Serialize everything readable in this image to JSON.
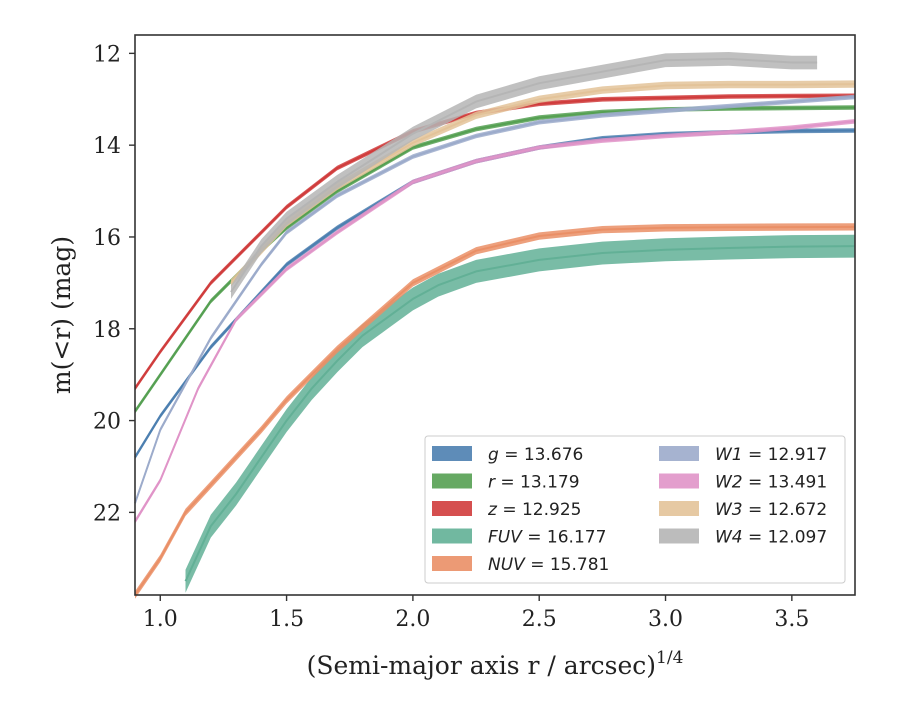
{
  "chart_data": {
    "type": "line",
    "title": "",
    "xlabel": "(Semi-major axis r / arcsec)",
    "xlabel_superscript": "1/4",
    "ylabel": "m(<r) (mag)",
    "xlim": [
      0.9,
      3.75
    ],
    "ylim": [
      23.8,
      11.6
    ],
    "y_inverted": true,
    "grid": false,
    "legend_placement": "lower-right",
    "xticks": [
      "1.0",
      "1.5",
      "2.0",
      "2.5",
      "3.0",
      "3.5"
    ],
    "yticks": [
      "12",
      "14",
      "16",
      "18",
      "20",
      "22"
    ],
    "series": [
      {
        "name": "g = 13.676",
        "label_var": "g",
        "label_value": "13.676",
        "color": "#4c7fb0",
        "band": 0.05,
        "x": [
          0.9,
          1.0,
          1.2,
          1.4,
          1.5,
          1.7,
          2.0,
          2.25,
          2.5,
          2.75,
          3.0,
          3.25,
          3.5,
          3.75
        ],
        "y": [
          20.8,
          19.9,
          18.4,
          17.2,
          16.6,
          15.8,
          14.8,
          14.35,
          14.05,
          13.85,
          13.76,
          13.72,
          13.69,
          13.68
        ]
      },
      {
        "name": "r = 13.179",
        "label_var": "r",
        "label_value": "13.179",
        "color": "#55a052",
        "band": 0.05,
        "x": [
          0.9,
          1.0,
          1.2,
          1.4,
          1.5,
          1.7,
          2.0,
          2.25,
          2.5,
          2.75,
          3.0,
          3.25,
          3.5,
          3.75
        ],
        "y": [
          19.8,
          19.0,
          17.4,
          16.3,
          15.8,
          15.0,
          14.05,
          13.65,
          13.4,
          13.28,
          13.22,
          13.2,
          13.19,
          13.18
        ]
      },
      {
        "name": "z = 12.925",
        "label_var": "z",
        "label_value": "12.925",
        "color": "#d03c3c",
        "band": 0.05,
        "x": [
          0.9,
          1.0,
          1.2,
          1.4,
          1.5,
          1.7,
          2.0,
          2.25,
          2.5,
          2.75,
          3.0,
          3.25,
          3.5,
          3.75
        ],
        "y": [
          19.3,
          18.5,
          17.0,
          15.9,
          15.35,
          14.5,
          13.7,
          13.3,
          13.1,
          13.0,
          12.97,
          12.94,
          12.93,
          12.925
        ]
      },
      {
        "name": "FUV = 16.177",
        "label_var": "FUV",
        "label_value": "16.177",
        "color": "#62b096",
        "band": 0.25,
        "x": [
          1.1,
          1.2,
          1.3,
          1.4,
          1.5,
          1.6,
          1.7,
          1.8,
          1.9,
          2.0,
          2.1,
          2.25,
          2.5,
          2.75,
          3.0,
          3.25,
          3.5,
          3.75
        ],
        "y": [
          23.5,
          22.3,
          21.6,
          20.8,
          20.0,
          19.3,
          18.7,
          18.15,
          17.75,
          17.35,
          17.05,
          16.75,
          16.5,
          16.35,
          16.28,
          16.24,
          16.21,
          16.2
        ]
      },
      {
        "name": "NUV = 15.781",
        "label_var": "NUV",
        "label_value": "15.781",
        "color": "#ea8f66",
        "band": 0.08,
        "x": [
          0.9,
          1.0,
          1.1,
          1.2,
          1.4,
          1.5,
          1.7,
          2.0,
          2.25,
          2.5,
          2.75,
          3.0,
          3.25,
          3.5,
          3.75
        ],
        "y": [
          23.8,
          23.0,
          22.0,
          21.4,
          20.2,
          19.55,
          18.45,
          17.0,
          16.3,
          15.98,
          15.84,
          15.8,
          15.79,
          15.785,
          15.78
        ]
      },
      {
        "name": "W1 = 12.917",
        "label_var": "W1",
        "label_value": "12.917",
        "color": "#9cabcb",
        "band": 0.05,
        "x": [
          0.9,
          1.0,
          1.2,
          1.4,
          1.5,
          1.7,
          2.0,
          2.25,
          2.5,
          2.75,
          3.0,
          3.25,
          3.5,
          3.75
        ],
        "y": [
          21.8,
          20.2,
          18.2,
          16.6,
          15.9,
          15.1,
          14.25,
          13.8,
          13.5,
          13.35,
          13.25,
          13.15,
          13.05,
          12.95
        ]
      },
      {
        "name": "W2 = 13.491",
        "label_var": "W2",
        "label_value": "13.491",
        "color": "#e094c8",
        "band": 0.05,
        "x": [
          0.9,
          1.0,
          1.15,
          1.3,
          1.5,
          1.7,
          2.0,
          2.25,
          2.5,
          2.75,
          3.0,
          3.25,
          3.5,
          3.75
        ],
        "y": [
          22.2,
          21.3,
          19.3,
          17.8,
          16.7,
          15.9,
          14.8,
          14.35,
          14.05,
          13.9,
          13.8,
          13.72,
          13.62,
          13.48
        ]
      },
      {
        "name": "W3 = 12.672",
        "label_var": "W3",
        "label_value": "12.672",
        "color": "#e3c399",
        "band": 0.08,
        "x": [
          1.28,
          1.4,
          1.5,
          1.7,
          2.0,
          2.25,
          2.5,
          2.75,
          3.0,
          3.25,
          3.5,
          3.75
        ],
        "y": [
          17.0,
          16.3,
          15.7,
          14.9,
          13.95,
          13.35,
          13.0,
          12.8,
          12.7,
          12.68,
          12.68,
          12.67
        ]
      },
      {
        "name": "W4 = 12.097",
        "label_var": "W4",
        "label_value": "12.097",
        "color": "#b5b5b5",
        "band": 0.15,
        "x": [
          1.28,
          1.4,
          1.5,
          1.7,
          2.0,
          2.25,
          2.5,
          2.75,
          3.0,
          3.25,
          3.5,
          3.6
        ],
        "y": [
          17.2,
          16.2,
          15.6,
          14.8,
          13.75,
          13.05,
          12.65,
          12.4,
          12.15,
          12.12,
          12.2,
          12.2
        ]
      }
    ]
  }
}
